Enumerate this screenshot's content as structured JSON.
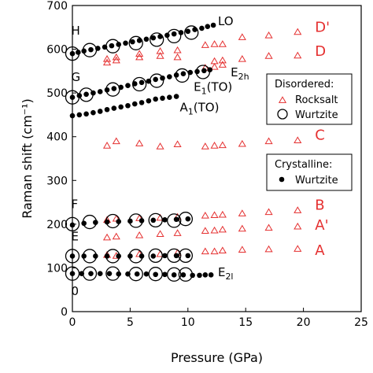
{
  "chart_data": {
    "type": "scatter",
    "xlabel": "Pressure (GPa)",
    "ylabel": "Raman shift (cm⁻¹)",
    "xlim": [
      0,
      25
    ],
    "ylim": [
      0,
      700
    ],
    "xticks": [
      0,
      5,
      10,
      15,
      20,
      25
    ],
    "yticks": [
      0,
      100,
      200,
      300,
      400,
      500,
      600,
      700
    ],
    "grid": false,
    "legends": [
      {
        "title": "Disordered:",
        "position": "right-middle",
        "entries": [
          {
            "label": "Rocksalt",
            "series": "rocksalt"
          },
          {
            "label": "Wurtzite",
            "series": "wurtzite-disordered"
          }
        ]
      },
      {
        "title": "Crystalline:",
        "position": "right-lower",
        "entries": [
          {
            "label": "Wurtzite",
            "series": "wurtzite-crystalline"
          }
        ]
      }
    ],
    "series": [
      {
        "name": "Rocksalt",
        "id": "rocksalt",
        "marker": "triangle-open",
        "color": "#e53030",
        "points": [
          [
            3,
            578
          ],
          [
            3.8,
            582
          ],
          [
            5.8,
            590
          ],
          [
            7.6,
            596
          ],
          [
            9.1,
            598
          ],
          [
            11.5,
            610
          ],
          [
            12.3,
            612
          ],
          [
            13,
            612
          ],
          [
            14.7,
            628
          ],
          [
            17,
            632
          ],
          [
            19.5,
            640
          ],
          [
            3,
            570
          ],
          [
            3.8,
            575
          ],
          [
            5.8,
            582
          ],
          [
            7.6,
            585
          ],
          [
            9.1,
            582
          ],
          [
            12.3,
            573
          ],
          [
            13,
            575
          ],
          [
            14.7,
            578
          ],
          [
            17,
            585
          ],
          [
            19.5,
            586
          ],
          [
            11.5,
            558
          ],
          [
            12.3,
            560
          ],
          [
            13,
            565
          ],
          [
            3,
            380
          ],
          [
            3.8,
            390
          ],
          [
            5.8,
            385
          ],
          [
            7.6,
            378
          ],
          [
            9.1,
            383
          ],
          [
            11.5,
            378
          ],
          [
            12.3,
            380
          ],
          [
            13,
            381
          ],
          [
            14.7,
            384
          ],
          [
            17,
            390
          ],
          [
            19.5,
            392
          ],
          [
            3,
            210
          ],
          [
            3.8,
            213
          ],
          [
            5.8,
            214
          ],
          [
            7.6,
            215
          ],
          [
            9.1,
            217
          ],
          [
            11.5,
            220
          ],
          [
            12.3,
            221
          ],
          [
            13,
            222
          ],
          [
            14.7,
            225
          ],
          [
            17,
            228
          ],
          [
            19.5,
            232
          ],
          [
            3,
            170
          ],
          [
            3.8,
            172
          ],
          [
            5.8,
            175
          ],
          [
            7.6,
            178
          ],
          [
            9.1,
            180
          ],
          [
            11.5,
            185
          ],
          [
            12.3,
            186
          ],
          [
            13,
            188
          ],
          [
            14.7,
            190
          ],
          [
            17,
            192
          ],
          [
            19.5,
            195
          ],
          [
            3,
            130
          ],
          [
            3.8,
            128
          ],
          [
            5.8,
            132
          ],
          [
            7.6,
            132
          ],
          [
            9.1,
            135
          ],
          [
            11.5,
            138
          ],
          [
            12.3,
            138
          ],
          [
            13,
            140
          ],
          [
            14.7,
            142
          ],
          [
            17,
            143
          ],
          [
            19.5,
            144
          ]
        ]
      },
      {
        "name": "Wurtzite",
        "id": "wurtzite-disordered",
        "marker": "circle-open",
        "color": "#000000",
        "points": [
          [
            0,
            590
          ],
          [
            1.5,
            598
          ],
          [
            3.5,
            607
          ],
          [
            5.5,
            614
          ],
          [
            7.3,
            622
          ],
          [
            8.8,
            630
          ],
          [
            10.3,
            638
          ],
          [
            0,
            490
          ],
          [
            1.2,
            496
          ],
          [
            3.5,
            508
          ],
          [
            5.8,
            520
          ],
          [
            7.3,
            528
          ],
          [
            9.5,
            540
          ],
          [
            11.3,
            548
          ],
          [
            0,
            200
          ],
          [
            1.5,
            205
          ],
          [
            3.5,
            207
          ],
          [
            5.5,
            208
          ],
          [
            7.2,
            209
          ],
          [
            8.8,
            208
          ],
          [
            9.8,
            212
          ],
          [
            0,
            127
          ],
          [
            1.5,
            127
          ],
          [
            3.5,
            127
          ],
          [
            5.5,
            127
          ],
          [
            7.2,
            128
          ],
          [
            8.8,
            128
          ],
          [
            9.8,
            128
          ],
          [
            0,
            87
          ],
          [
            1.5,
            87
          ],
          [
            3.5,
            87
          ],
          [
            5.5,
            86
          ],
          [
            7.2,
            86
          ],
          [
            8.8,
            85
          ],
          [
            9.8,
            85
          ]
        ]
      },
      {
        "name": "Wurtzite",
        "id": "wurtzite-crystalline",
        "marker": "circle-filled",
        "color": "#000000",
        "points": [
          [
            0,
            590
          ],
          [
            0.5,
            593
          ],
          [
            1,
            596
          ],
          [
            1.6,
            599
          ],
          [
            2.2,
            602
          ],
          [
            2.8,
            605
          ],
          [
            3.4,
            608
          ],
          [
            4,
            611
          ],
          [
            4.6,
            614
          ],
          [
            5.2,
            617
          ],
          [
            5.8,
            620
          ],
          [
            6.4,
            623
          ],
          [
            7,
            626
          ],
          [
            7.6,
            629
          ],
          [
            8.2,
            632
          ],
          [
            8.8,
            635
          ],
          [
            9.4,
            638
          ],
          [
            10,
            641
          ],
          [
            10.6,
            645
          ],
          [
            11.2,
            648
          ],
          [
            11.7,
            652
          ],
          [
            12.2,
            655
          ],
          [
            0,
            490
          ],
          [
            0.6,
            494
          ],
          [
            1.2,
            497
          ],
          [
            1.8,
            500
          ],
          [
            2.4,
            503
          ],
          [
            3,
            507
          ],
          [
            3.6,
            510
          ],
          [
            4.2,
            513
          ],
          [
            4.8,
            517
          ],
          [
            5.4,
            521
          ],
          [
            6,
            524
          ],
          [
            6.6,
            527
          ],
          [
            7.2,
            531
          ],
          [
            7.8,
            534
          ],
          [
            8.4,
            537
          ],
          [
            9,
            541
          ],
          [
            9.6,
            544
          ],
          [
            10.2,
            547
          ],
          [
            10.8,
            549
          ],
          [
            11.4,
            551
          ],
          [
            11.9,
            553
          ],
          [
            0,
            448
          ],
          [
            0.6,
            450
          ],
          [
            1.2,
            452
          ],
          [
            1.8,
            455
          ],
          [
            2.4,
            458
          ],
          [
            3,
            462
          ],
          [
            3.6,
            465
          ],
          [
            4.2,
            468
          ],
          [
            4.8,
            471
          ],
          [
            5.4,
            475
          ],
          [
            6,
            478
          ],
          [
            6.6,
            482
          ],
          [
            7.2,
            486
          ],
          [
            7.8,
            488
          ],
          [
            8.4,
            490
          ],
          [
            9,
            492
          ],
          [
            0,
            198
          ],
          [
            1,
            202
          ],
          [
            2,
            204
          ],
          [
            3,
            205
          ],
          [
            4,
            206
          ],
          [
            5,
            207
          ],
          [
            6,
            208
          ],
          [
            7,
            209
          ],
          [
            8,
            210
          ],
          [
            9,
            211
          ],
          [
            10,
            212
          ],
          [
            0,
            127
          ],
          [
            1,
            127
          ],
          [
            2,
            127
          ],
          [
            3,
            127
          ],
          [
            4,
            127
          ],
          [
            5,
            127
          ],
          [
            6,
            127
          ],
          [
            7,
            127
          ],
          [
            8,
            128
          ],
          [
            9,
            128
          ],
          [
            10,
            128
          ],
          [
            0,
            87
          ],
          [
            0.8,
            87
          ],
          [
            1.6,
            87
          ],
          [
            2.4,
            87
          ],
          [
            3.2,
            87
          ],
          [
            4,
            86
          ],
          [
            4.8,
            86
          ],
          [
            5.6,
            86
          ],
          [
            6.4,
            86
          ],
          [
            7.2,
            85
          ],
          [
            8,
            85
          ],
          [
            8.8,
            84
          ],
          [
            9.6,
            84
          ],
          [
            10.4,
            83
          ],
          [
            11,
            83
          ],
          [
            11.5,
            84
          ],
          [
            12,
            84
          ]
        ]
      }
    ],
    "annotations": [
      {
        "text": "LO",
        "color": "black",
        "x": 12.6,
        "y": 655
      },
      {
        "text": "H",
        "color": "black",
        "x": -0.1,
        "y": 633
      },
      {
        "text": "G",
        "color": "black",
        "x": -0.1,
        "y": 527
      },
      {
        "text": "F",
        "color": "black",
        "x": -0.1,
        "y": 237
      },
      {
        "text": "E",
        "color": "black",
        "x": -0.1,
        "y": 163
      },
      {
        "text": "0",
        "color": "black",
        "x": -0.1,
        "y": 38
      },
      {
        "text": "E2h",
        "color": "black",
        "x": 13.7,
        "y": 538
      },
      {
        "text": "E1(TO)",
        "color": "black",
        "x": 10.5,
        "y": 505
      },
      {
        "text": "A1(TO)",
        "color": "black",
        "x": 9.3,
        "y": 458
      },
      {
        "text": "E2l",
        "color": "black",
        "x": 12.6,
        "y": 81
      },
      {
        "text": "D'",
        "color": "red",
        "x": 21,
        "y": 640
      },
      {
        "text": "D",
        "color": "red",
        "x": 21,
        "y": 585
      },
      {
        "text": "C",
        "color": "red",
        "x": 21,
        "y": 393
      },
      {
        "text": "B",
        "color": "red",
        "x": 21,
        "y": 233
      },
      {
        "text": "A'",
        "color": "red",
        "x": 21,
        "y": 187
      },
      {
        "text": "A",
        "color": "red",
        "x": 21,
        "y": 130
      }
    ]
  }
}
